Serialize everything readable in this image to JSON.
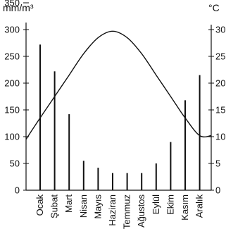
{
  "chart_data": {
    "type": "bar",
    "title": "",
    "categories": [
      "Ocak",
      "Şubat",
      "Mart",
      "Nisan",
      "Mayıs",
      "Haziran",
      "Temmuz",
      "Ağustos",
      "Eylül",
      "Ekim",
      "Kasım",
      "Aralık"
    ],
    "left_axis": {
      "unit": "mm/m³",
      "ticks": [
        "350",
        "300",
        "250",
        "200",
        "150",
        "100",
        "50",
        "0"
      ],
      "ylim": [
        0,
        350
      ]
    },
    "right_axis": {
      "unit": "°C",
      "ticks": [
        "30",
        "25",
        "20",
        "15",
        "10",
        "5",
        "0"
      ],
      "ylim": [
        0,
        35
      ]
    },
    "series": [
      {
        "type": "bar",
        "axis": "left",
        "values": [
          272,
          222,
          142,
          55,
          42,
          32,
          32,
          32,
          50,
          90,
          168,
          215
        ]
      },
      {
        "type": "line",
        "axis": "right",
        "values": [
          13.5,
          17.5,
          21.5,
          25.5,
          28.5,
          29.7,
          28.5,
          25.5,
          21.5,
          17.5,
          13.5,
          10.2
        ]
      }
    ],
    "grid": false,
    "legend": "none"
  }
}
